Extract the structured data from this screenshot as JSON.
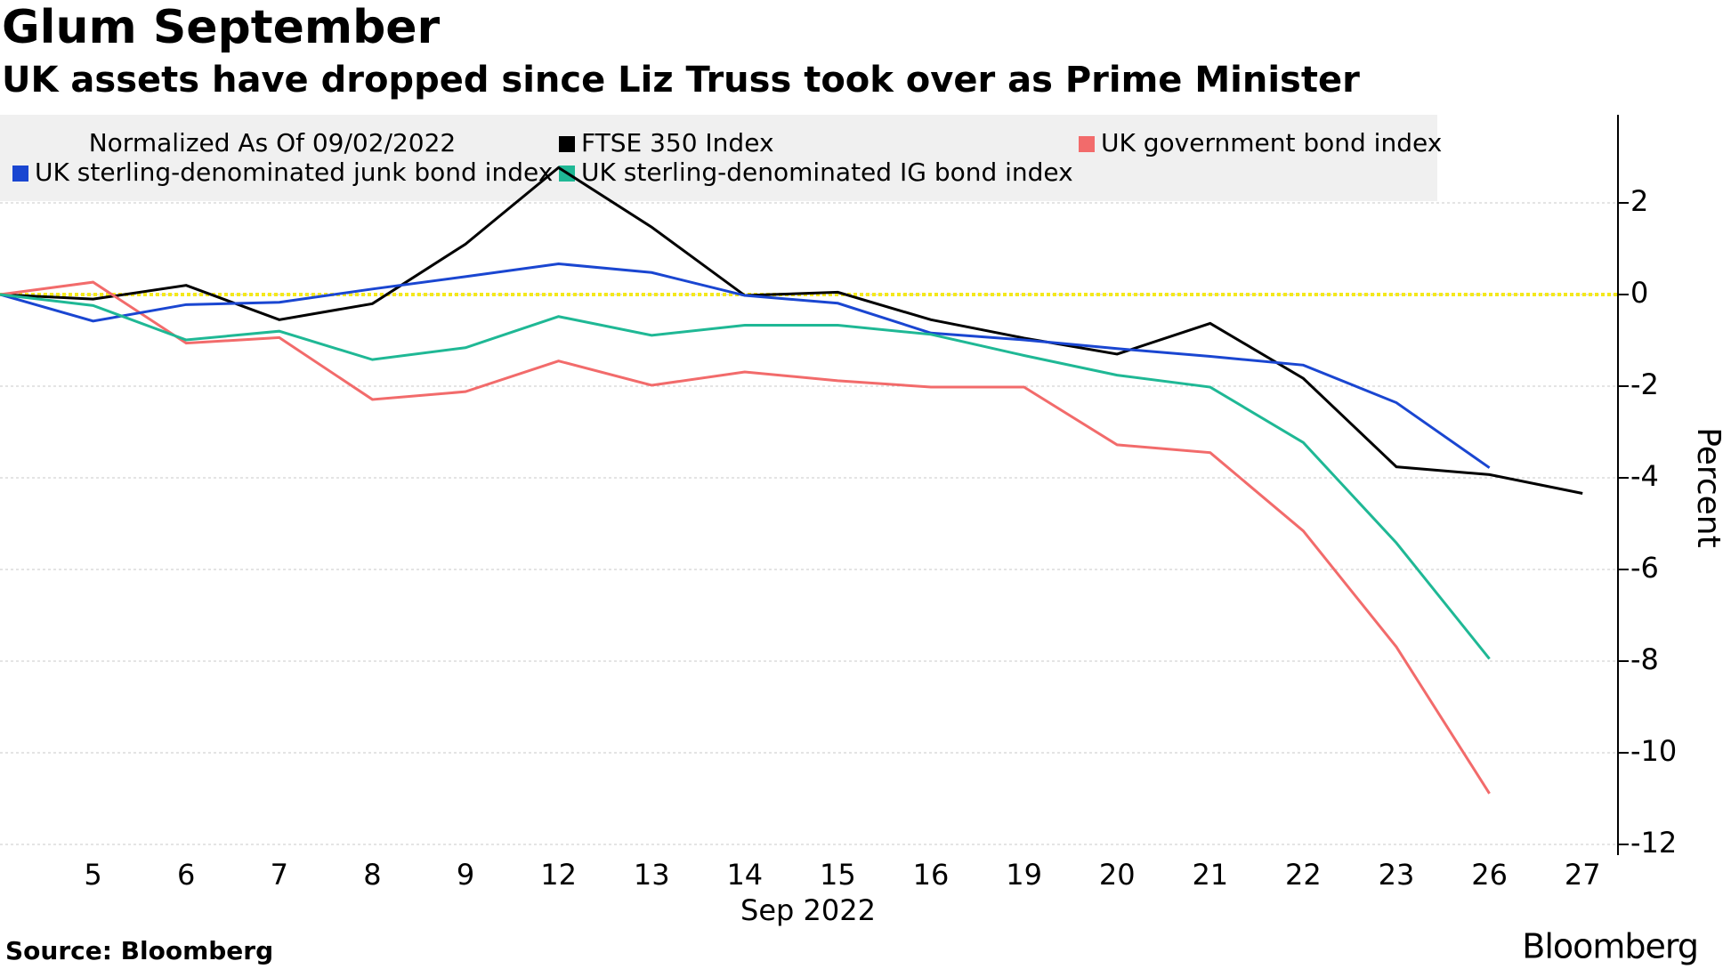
{
  "chart_data": {
    "type": "line",
    "title": "Glum September",
    "subtitle": "UK assets have dropped since Liz Truss took over as Prime Minister",
    "legend_title": "Normalized As Of 09/02/2022",
    "xlabel": "Sep 2022",
    "ylabel": "Percent",
    "source": "Source: Bloomberg",
    "brand": "Bloomberg",
    "categories": [
      null,
      "5",
      "6",
      "7",
      "8",
      "9",
      "12",
      "13",
      "14",
      "15",
      "16",
      "19",
      "20",
      "21",
      "22",
      "23",
      "26",
      "27"
    ],
    "series": [
      {
        "name": "FTSE 350 Index",
        "color": "#000000",
        "values": [
          0,
          -0.1,
          0.2,
          -0.55,
          -0.2,
          1.1,
          2.77,
          1.47,
          -0.02,
          0.05,
          -0.55,
          -0.95,
          -1.3,
          -0.63,
          -1.83,
          -3.76,
          -3.93,
          -4.34
        ]
      },
      {
        "name": "UK government bond index",
        "color": "#f26b6b",
        "values": [
          0,
          0.27,
          -1.06,
          -0.94,
          -2.29,
          -2.12,
          -1.45,
          -1.98,
          -1.69,
          -1.88,
          -2.02,
          -2.02,
          -3.28,
          -3.45,
          -5.16,
          -7.69,
          -10.89,
          null
        ]
      },
      {
        "name": "UK sterling-denominated junk bond index",
        "color": "#1a46d1",
        "values": [
          0,
          -0.58,
          -0.22,
          -0.17,
          0.12,
          0.39,
          0.67,
          0.48,
          -0.02,
          -0.19,
          -0.84,
          -0.99,
          -1.18,
          -1.35,
          -1.54,
          -2.36,
          -3.78,
          null
        ]
      },
      {
        "name": "UK sterling-denominated IG bond index",
        "color": "#1fb895",
        "values": [
          0,
          -0.24,
          -0.99,
          -0.8,
          -1.42,
          -1.16,
          -0.48,
          -0.89,
          -0.67,
          -0.67,
          -0.87,
          -1.33,
          -1.76,
          -2.02,
          -3.23,
          -5.42,
          -7.95,
          null
        ]
      }
    ],
    "ylim": [
      -12.2,
      3.9
    ],
    "yticks": [
      -12,
      -10,
      -8,
      -6,
      -4,
      -2,
      0,
      2
    ],
    "grid": true,
    "zero_line_color": "#f4e81c"
  }
}
